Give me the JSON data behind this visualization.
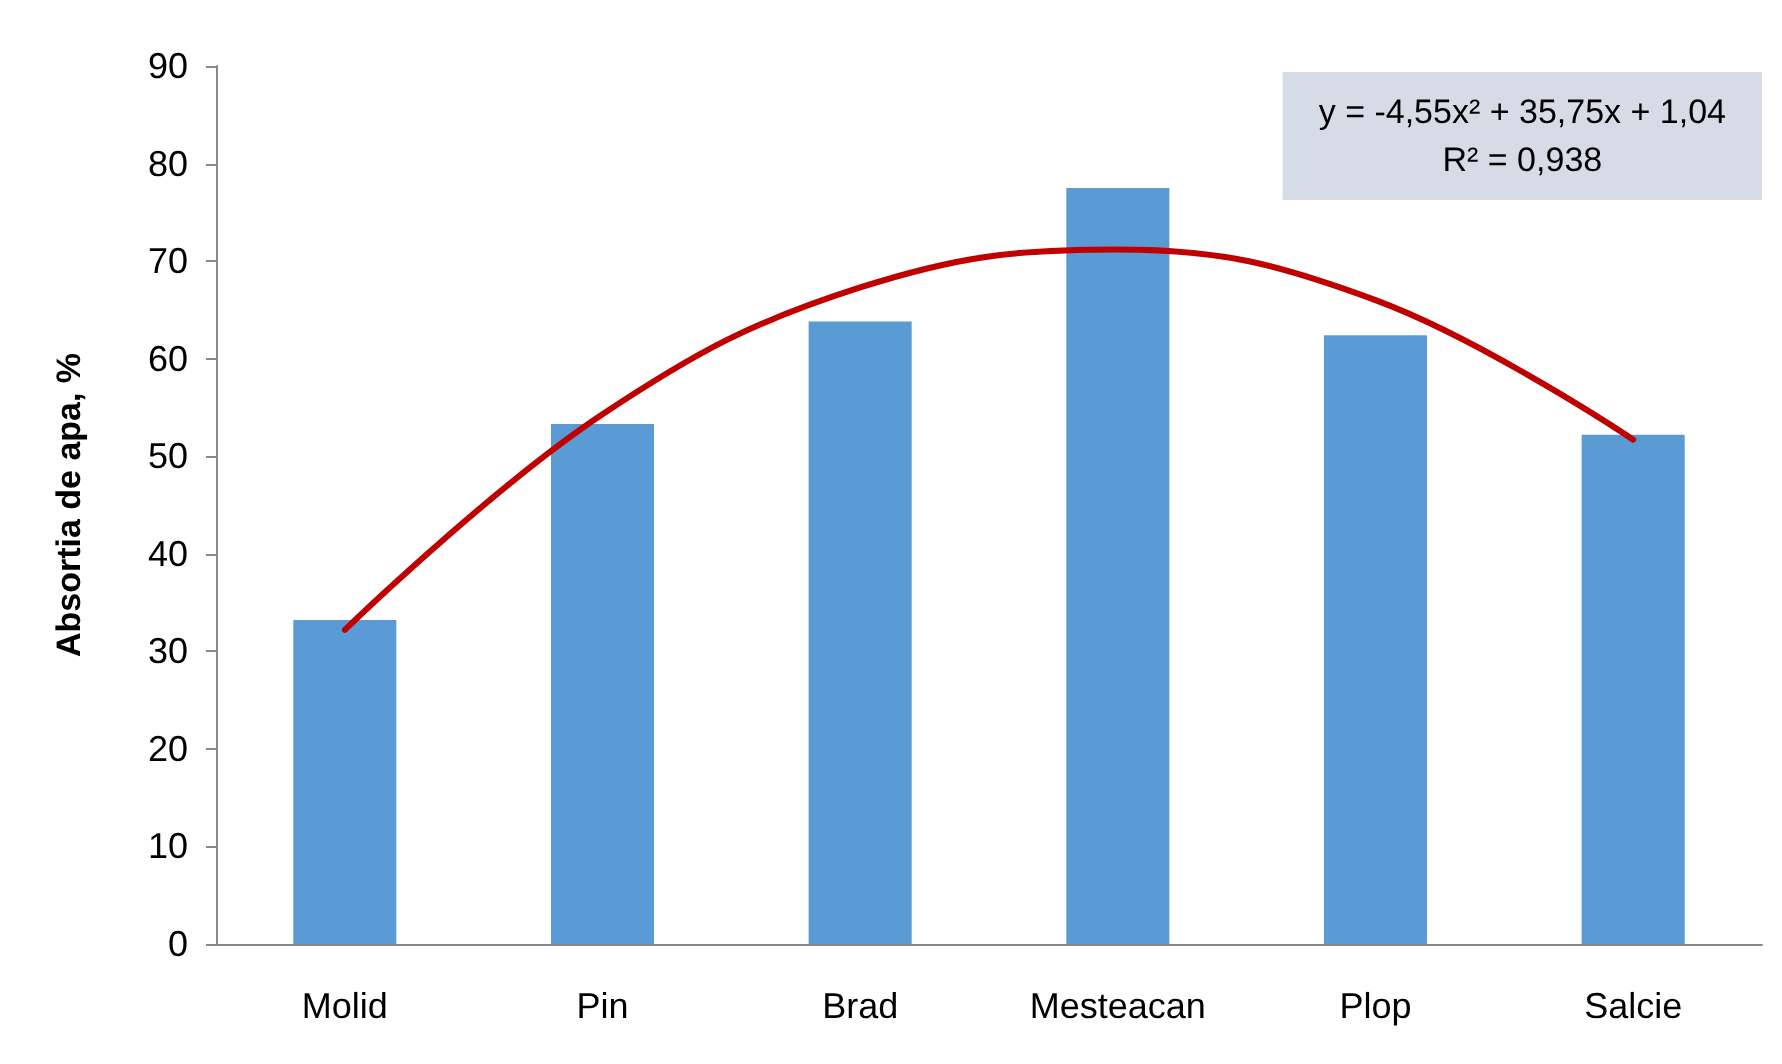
{
  "chart_data": {
    "type": "bar",
    "ylabel": "Absortia de apa, %",
    "categories": [
      "Molid",
      "Pin",
      "Brad",
      "Mesteacan",
      "Plop",
      "Salcie"
    ],
    "series": [
      {
        "color": "#5b9bd5",
        "values": [
          33.2,
          53.3,
          63.8,
          77.5,
          62.4,
          52.2
        ]
      },
      {
        "type": "line",
        "color": "#c00000",
        "x": [
          "Molid",
          "Pin",
          "Brad",
          "Mesteacan",
          "Plop",
          "Salcie"
        ],
        "values": [
          32.2,
          54.3,
          67.3,
          71.2,
          66.0,
          51.7
        ]
      }
    ],
    "ylim": [
      0,
      90
    ],
    "yticks": [
      0,
      10,
      20,
      30,
      40,
      50,
      60,
      70,
      80,
      90
    ],
    "grid": false,
    "marker": "none",
    "annotations": [
      "y = -4,55x² + 35,75x + 1,04\nR² = 0,938"
    ]
  }
}
